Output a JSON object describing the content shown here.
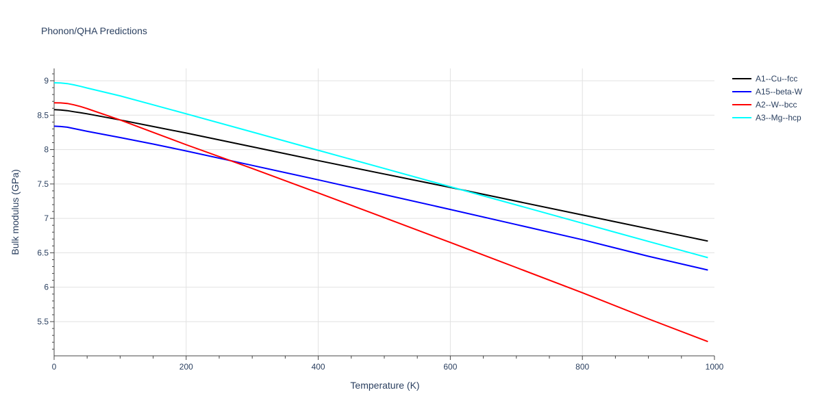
{
  "chart_data": {
    "type": "line",
    "title": "Phonon/QHA Predictions",
    "xlabel": "Temperature (K)",
    "ylabel": "Bulk modulus (GPa)",
    "xlim": [
      0,
      1000
    ],
    "ylim": [
      5.0,
      9.18
    ],
    "xticks": [
      0,
      200,
      400,
      600,
      800,
      1000
    ],
    "yticks": [
      5.5,
      6,
      6.5,
      7,
      7.5,
      8,
      8.5,
      9
    ],
    "grid": true,
    "legend": "right",
    "series": [
      {
        "name": "A1--Cu--fcc",
        "color": "#000000",
        "x": [
          0,
          10,
          20,
          30,
          40,
          50,
          100,
          150,
          200,
          300,
          400,
          500,
          600,
          700,
          800,
          900,
          990
        ],
        "y": [
          8.58,
          8.575,
          8.565,
          8.55,
          8.535,
          8.52,
          8.43,
          8.335,
          8.24,
          8.04,
          7.84,
          7.645,
          7.45,
          7.25,
          7.05,
          6.85,
          6.67
        ]
      },
      {
        "name": "A15--beta-W",
        "color": "#0000ff",
        "x": [
          0,
          10,
          20,
          30,
          40,
          50,
          100,
          150,
          200,
          300,
          400,
          500,
          600,
          700,
          800,
          900,
          990
        ],
        "y": [
          8.34,
          8.335,
          8.325,
          8.305,
          8.285,
          8.265,
          8.175,
          8.08,
          7.98,
          7.77,
          7.56,
          7.345,
          7.13,
          6.91,
          6.69,
          6.45,
          6.25
        ]
      },
      {
        "name": "A2--W--bcc",
        "color": "#ff0000",
        "x": [
          0,
          10,
          20,
          30,
          40,
          50,
          100,
          150,
          200,
          300,
          400,
          500,
          600,
          700,
          800,
          900,
          990
        ],
        "y": [
          8.68,
          8.678,
          8.67,
          8.65,
          8.625,
          8.595,
          8.43,
          8.25,
          8.07,
          7.725,
          7.37,
          7.01,
          6.65,
          6.285,
          5.92,
          5.54,
          5.21
        ]
      },
      {
        "name": "A3--Mg--hcp",
        "color": "#00ffff",
        "x": [
          0,
          10,
          20,
          30,
          40,
          50,
          100,
          150,
          200,
          300,
          400,
          500,
          600,
          700,
          800,
          900,
          990
        ],
        "y": [
          8.97,
          8.968,
          8.958,
          8.94,
          8.918,
          8.895,
          8.78,
          8.65,
          8.52,
          8.255,
          7.99,
          7.725,
          7.46,
          7.195,
          6.93,
          6.665,
          6.43
        ]
      }
    ]
  }
}
